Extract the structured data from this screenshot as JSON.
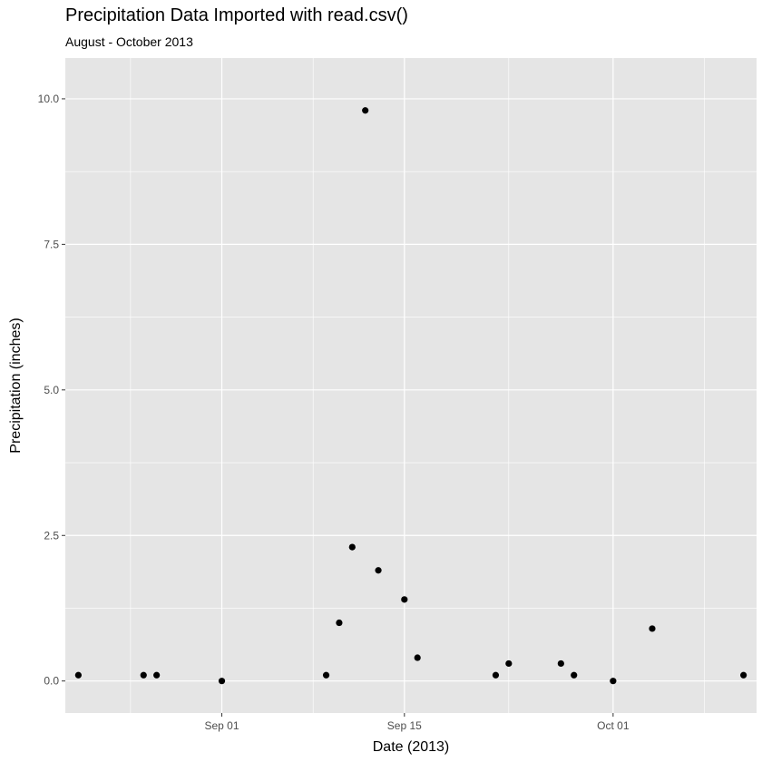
{
  "chart_data": {
    "type": "scatter",
    "title": "Precipitation Data Imported with read.csv()",
    "subtitle": "August - October 2013",
    "xlabel": "Date (2013)",
    "ylabel": "Precipitation (inches)",
    "x_ticks": [
      {
        "date": "2013-09-01",
        "label": "Sep 01"
      },
      {
        "date": "2013-09-15",
        "label": "Sep 15"
      },
      {
        "date": "2013-10-01",
        "label": "Oct 01"
      }
    ],
    "x_minor": [
      "2013-08-25",
      "2013-09-08",
      "2013-09-23",
      "2013-10-08"
    ],
    "xlim": [
      "2013-08-20",
      "2013-10-12"
    ],
    "y_ticks": [
      0.0,
      2.5,
      5.0,
      7.5,
      10.0
    ],
    "y_tick_labels": [
      "0.0",
      "2.5",
      "5.0",
      "7.5",
      "10.0"
    ],
    "ylim": [
      -0.55,
      10.7
    ],
    "grid": true,
    "colors": {
      "panel": "#e5e5e5",
      "grid": "#ffffff",
      "point": "#000000"
    },
    "points": [
      {
        "date": "2013-08-21",
        "value": 0.1
      },
      {
        "date": "2013-08-26",
        "value": 0.1
      },
      {
        "date": "2013-08-27",
        "value": 0.1
      },
      {
        "date": "2013-09-01",
        "value": 0.0
      },
      {
        "date": "2013-09-09",
        "value": 0.1
      },
      {
        "date": "2013-09-10",
        "value": 1.0
      },
      {
        "date": "2013-09-11",
        "value": 2.3
      },
      {
        "date": "2013-09-12",
        "value": 9.8
      },
      {
        "date": "2013-09-13",
        "value": 1.9
      },
      {
        "date": "2013-09-15",
        "value": 1.4
      },
      {
        "date": "2013-09-16",
        "value": 0.4
      },
      {
        "date": "2013-09-22",
        "value": 0.1
      },
      {
        "date": "2013-09-23",
        "value": 0.3
      },
      {
        "date": "2013-09-27",
        "value": 0.3
      },
      {
        "date": "2013-09-28",
        "value": 0.1
      },
      {
        "date": "2013-10-01",
        "value": 0.0
      },
      {
        "date": "2013-10-04",
        "value": 0.9
      },
      {
        "date": "2013-10-11",
        "value": 0.1
      }
    ]
  }
}
